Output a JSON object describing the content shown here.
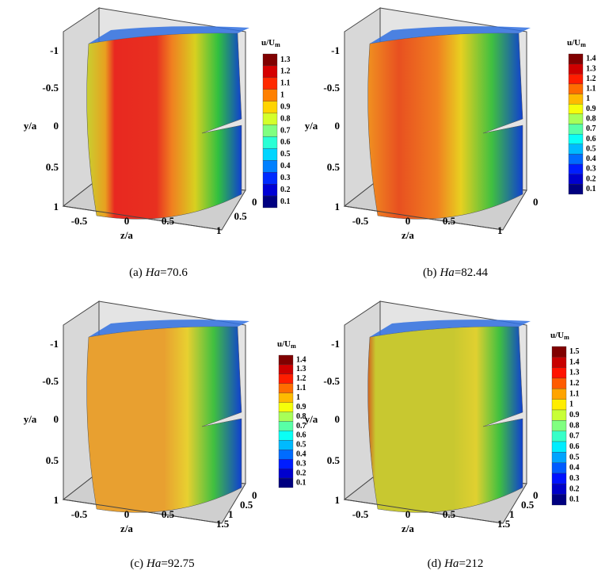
{
  "panels": [
    {
      "caption": {
        "label": "(a)",
        "variable": "Ha",
        "value": "=70.6"
      },
      "y_label": "y/a",
      "y_ticks": [
        "-1",
        "-0.5",
        "0",
        "0.5",
        "1"
      ],
      "z_label": "z/a",
      "z_ticks": [
        "-0.5",
        "0",
        "0.5"
      ],
      "x_ticks": [
        "0",
        "0.5",
        "1"
      ],
      "colorbar_title": "u/U",
      "colorbar_subscript": "m",
      "colorbar_levels": [
        "1.3",
        "1.2",
        "1.1",
        "1",
        "0.9",
        "0.8",
        "0.7",
        "0.6",
        "0.5",
        "0.4",
        "0.3",
        "0.2",
        "0.1"
      ]
    },
    {
      "caption": {
        "label": "(b)",
        "variable": "Ha",
        "value": "=82.44"
      },
      "y_label": "y/a",
      "y_ticks": [
        "-1",
        "-0.5",
        "0",
        "0.5",
        "1"
      ],
      "z_label": "z/a",
      "z_ticks": [
        "-0.5",
        "0",
        "0.5"
      ],
      "x_ticks": [
        "0",
        "1"
      ],
      "colorbar_title": "u/U",
      "colorbar_subscript": "m",
      "colorbar_levels": [
        "1.4",
        "1.3",
        "1.2",
        "1.1",
        "1",
        "0.9",
        "0.8",
        "0.7",
        "0.6",
        "0.5",
        "0.4",
        "0.3",
        "0.2",
        "0.1"
      ]
    },
    {
      "caption": {
        "label": "(c)",
        "variable": "Ha",
        "value": "=92.75"
      },
      "y_label": "y/a",
      "y_ticks": [
        "-1",
        "-0.5",
        "0",
        "0.5",
        "1"
      ],
      "z_label": "z/a",
      "z_ticks": [
        "-0.5",
        "0",
        "0.5"
      ],
      "x_ticks": [
        "0",
        "0.5",
        "1",
        "1.5"
      ],
      "colorbar_title": "u/U",
      "colorbar_subscript": "m",
      "colorbar_levels": [
        "1.4",
        "1.3",
        "1.2",
        "1.1",
        "1",
        "0.9",
        "0.8",
        "0.7",
        "0.6",
        "0.5",
        "0.4",
        "0.3",
        "0.2",
        "0.1"
      ]
    },
    {
      "caption": {
        "label": "(d)",
        "variable": "Ha",
        "value": "=212"
      },
      "y_label": "y/a",
      "y_ticks": [
        "-1",
        "-0.5",
        "0",
        "0.5",
        "1"
      ],
      "z_label": "z/a",
      "z_ticks": [
        "-0.5",
        "0",
        "0.5"
      ],
      "x_ticks": [
        "0",
        "0.5",
        "1",
        "1.5"
      ],
      "colorbar_title": "u/U",
      "colorbar_subscript": "m",
      "colorbar_levels": [
        "1.5",
        "1.4",
        "1.3",
        "1.2",
        "1.1",
        "1",
        "0.9",
        "0.8",
        "0.7",
        "0.6",
        "0.5",
        "0.4",
        "0.3",
        "0.2",
        "0.1"
      ]
    }
  ]
}
